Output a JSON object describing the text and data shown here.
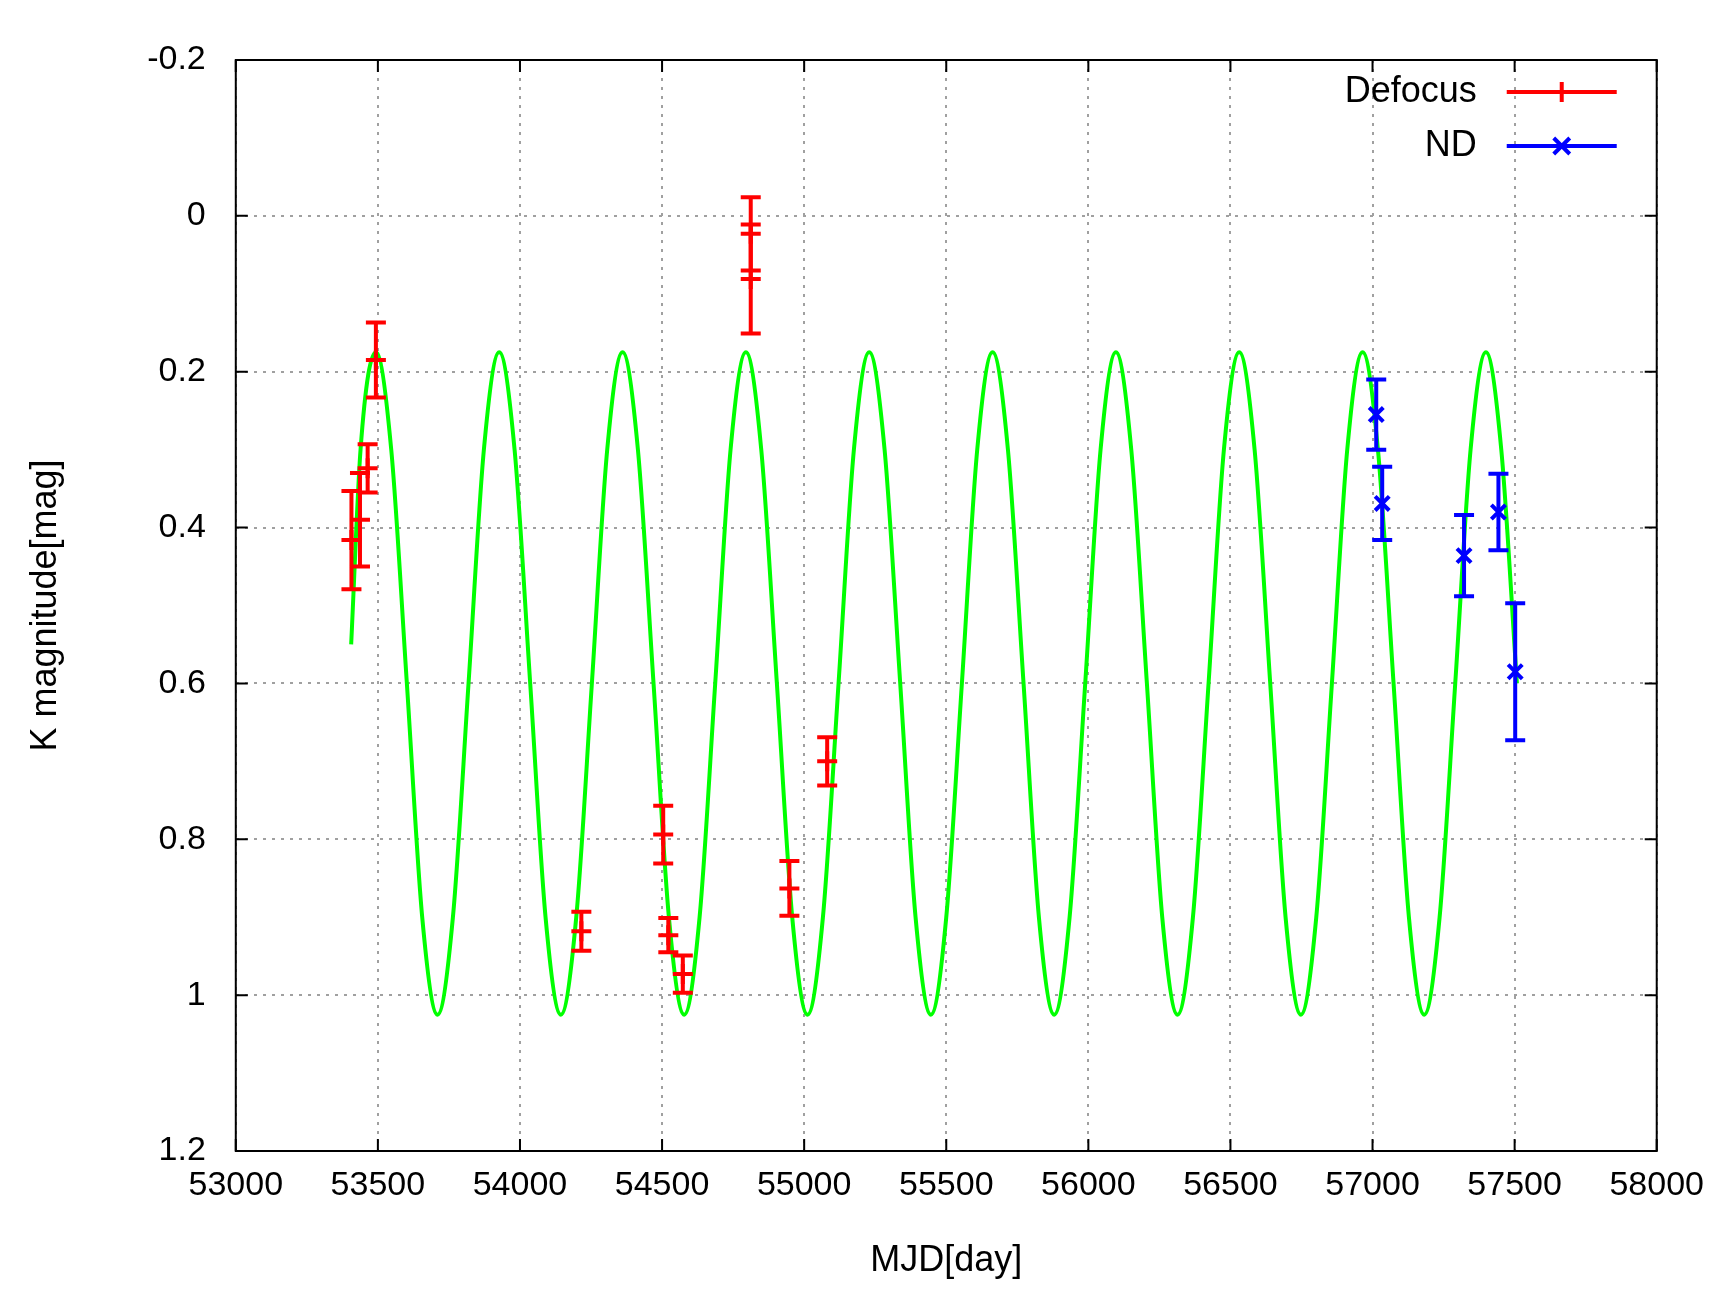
{
  "chart_data": {
    "type": "scatter",
    "xlabel": "MJD[day]",
    "ylabel": "K magnitude[mag]",
    "xlim": [
      53000,
      58000
    ],
    "xticks": [
      53000,
      53500,
      54000,
      54500,
      55000,
      55500,
      56000,
      56500,
      57000,
      57500,
      58000
    ],
    "ylim": [
      1.2,
      -0.2
    ],
    "yticks": [
      -0.2,
      0,
      0.2,
      0.4,
      0.6,
      0.8,
      1,
      1.2
    ],
    "grid": true,
    "legend": "top right",
    "series": [
      {
        "type": "line",
        "color": "#00ff00",
        "marker": "none",
        "x": [
          53406,
          53439,
          53493,
          53547,
          53602,
          53656,
          53710,
          53764,
          53819,
          53873,
          53927,
          53981,
          54036,
          54090,
          54144,
          54198,
          54253,
          54307,
          54361,
          54415,
          54470,
          54524,
          54578,
          54632,
          54687,
          54741,
          54795,
          54849,
          54904,
          54958,
          55012,
          55066,
          55121,
          55175,
          55229,
          55283,
          55338,
          55392,
          55446,
          55500,
          55555,
          55609,
          55663,
          55717,
          55772,
          55826,
          55880,
          55934,
          55989,
          56043,
          56097,
          56151,
          56206,
          56260,
          56314,
          56368,
          56423,
          56477,
          56531,
          56585,
          56640,
          56694,
          56748,
          56802,
          56857,
          56911,
          56965,
          57019,
          57074,
          57128,
          57182,
          57236,
          57291,
          57345,
          57399,
          57453,
          57508
        ],
        "values": [
          0.55,
          0.3,
          0.175,
          0.3,
          0.6,
          0.9,
          1.025,
          0.9,
          0.6,
          0.3,
          0.175,
          0.3,
          0.6,
          0.9,
          1.025,
          0.9,
          0.6,
          0.3,
          0.175,
          0.3,
          0.6,
          0.9,
          1.025,
          0.9,
          0.6,
          0.3,
          0.175,
          0.3,
          0.6,
          0.9,
          1.025,
          0.9,
          0.6,
          0.3,
          0.175,
          0.3,
          0.6,
          0.9,
          1.025,
          0.9,
          0.6,
          0.3,
          0.175,
          0.3,
          0.6,
          0.9,
          1.025,
          0.9,
          0.6,
          0.3,
          0.175,
          0.3,
          0.6,
          0.9,
          1.025,
          0.9,
          0.6,
          0.3,
          0.175,
          0.3,
          0.6,
          0.9,
          1.025,
          0.9,
          0.6,
          0.3,
          0.175,
          0.3,
          0.6,
          0.9,
          1.025,
          0.9,
          0.6,
          0.3,
          0.175,
          0.3,
          0.6
        ]
      },
      {
        "name": "Defocus",
        "color": "#ff0000",
        "marker": "plus",
        "x": [
          53407,
          53437,
          53464,
          53493,
          54216,
          54504,
          54522,
          54573,
          54812,
          54812,
          54948,
          55081
        ],
        "values": [
          0.416,
          0.39,
          0.324,
          0.185,
          0.918,
          0.794,
          0.923,
          0.973,
          0.023,
          0.081,
          0.863,
          0.7
        ],
        "errors": [
          0.063,
          0.06,
          0.031,
          0.048,
          0.025,
          0.037,
          0.022,
          0.024,
          0.047,
          0.07,
          0.035,
          0.031
        ]
      },
      {
        "name": "ND",
        "color": "#0000ff",
        "marker": "cross",
        "x": [
          57013,
          57034,
          57322,
          57443,
          57502
        ],
        "values": [
          0.255,
          0.369,
          0.436,
          0.38,
          0.585
        ],
        "errors": [
          0.045,
          0.047,
          0.052,
          0.049,
          0.088
        ]
      }
    ]
  }
}
